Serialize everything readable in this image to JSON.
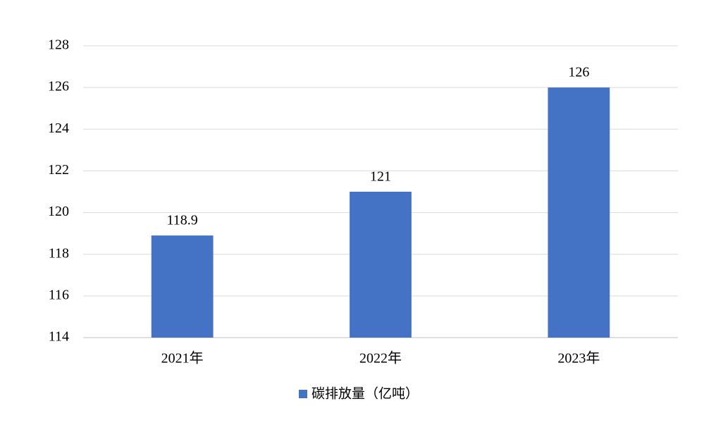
{
  "chart_data": {
    "type": "bar",
    "categories": [
      "2021年",
      "2022年",
      "2023年"
    ],
    "series": [
      {
        "name": "碳排放量（亿吨）",
        "color": "#4472c4",
        "values": [
          118.9,
          121,
          126
        ]
      }
    ],
    "ylim": [
      114,
      128
    ],
    "yticks": [
      114,
      116,
      118,
      120,
      122,
      124,
      126,
      128
    ],
    "grid": true,
    "legend": "bottom"
  }
}
